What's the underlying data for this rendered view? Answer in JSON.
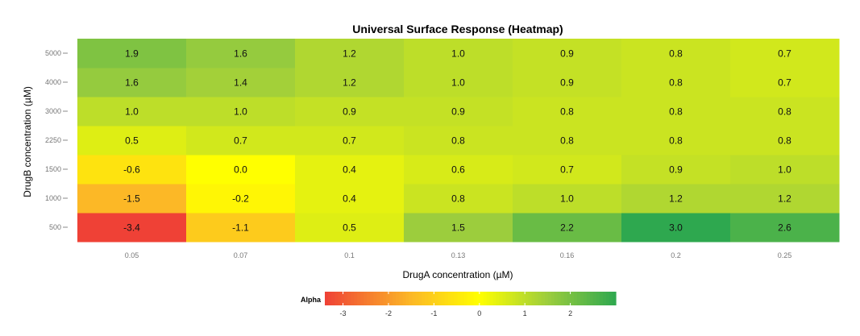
{
  "chart_data": {
    "type": "heatmap",
    "title": "Universal Surface Response (Heatmap)",
    "xlabel": "DrugA concentration (µM)",
    "ylabel": "DrugB concentration (µM)",
    "x_categories": [
      "0.05",
      "0.07",
      "0.1",
      "0.13",
      "0.16",
      "0.2",
      "0.25"
    ],
    "y_categories": [
      "500",
      "1000",
      "1500",
      "2250",
      "3000",
      "4000",
      "5000"
    ],
    "values": [
      [
        -3.4,
        -1.1,
        0.5,
        1.5,
        2.2,
        3.0,
        2.6
      ],
      [
        -1.5,
        -0.2,
        0.4,
        0.8,
        1.0,
        1.2,
        1.2
      ],
      [
        -0.6,
        -0.0,
        0.4,
        0.6,
        0.7,
        0.9,
        1.0
      ],
      [
        0.5,
        0.7,
        0.7,
        0.8,
        0.8,
        0.8,
        0.8
      ],
      [
        1.0,
        1.0,
        0.9,
        0.9,
        0.8,
        0.8,
        0.8
      ],
      [
        1.6,
        1.4,
        1.2,
        1.0,
        0.9,
        0.8,
        0.7
      ],
      [
        1.9,
        1.6,
        1.2,
        1.0,
        0.9,
        0.8,
        0.7
      ]
    ],
    "legend": {
      "title": "Alpha",
      "position": "bottom",
      "ticks": [
        -3,
        -2,
        -1,
        0,
        1,
        2
      ],
      "range": [
        -3.4,
        3.0
      ]
    },
    "colors": {
      "low": "#ef4136",
      "mid_low": "#fcb826",
      "zero": "#ffff00",
      "mid_high": "#9ccd3d",
      "high": "#2ea84f"
    },
    "grid": false
  }
}
